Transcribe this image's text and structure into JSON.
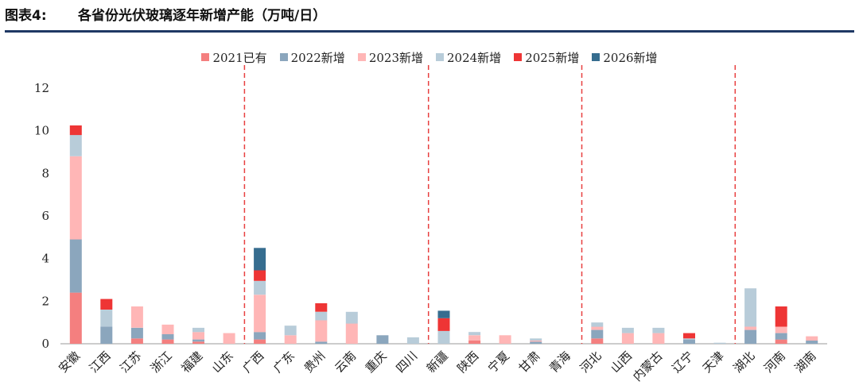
{
  "header": {
    "figure_label": "图表4:",
    "title": "各省份光伏玻璃逐年新增产能（万吨/日）"
  },
  "chart_data": {
    "type": "bar",
    "stacked": true,
    "categories": [
      "安徽",
      "江西",
      "江苏",
      "浙江",
      "福建",
      "山东",
      "广西",
      "广东",
      "贵州",
      "云南",
      "重庆",
      "四川",
      "新疆",
      "陕西",
      "宁夏",
      "甘肃",
      "青海",
      "河北",
      "山西",
      "内蒙古",
      "辽宁",
      "天津",
      "湖北",
      "河南",
      "湖南"
    ],
    "series": [
      {
        "name": "2021已有",
        "color": "#f47f7f",
        "values": [
          2.4,
          0,
          0.25,
          0.2,
          0.1,
          0,
          0.2,
          0,
          0,
          0,
          0,
          0,
          0,
          0.15,
          0,
          0,
          0,
          0.25,
          0,
          0,
          0,
          0,
          0,
          0.2,
          0
        ]
      },
      {
        "name": "2022新增",
        "color": "#8ba6bd",
        "values": [
          2.5,
          0.8,
          0.5,
          0.25,
          0.1,
          0,
          0.35,
          0,
          0.1,
          0,
          0.4,
          0,
          0,
          0,
          0,
          0.1,
          0,
          0.4,
          0,
          0,
          0.2,
          0,
          0.65,
          0.3,
          0.15
        ]
      },
      {
        "name": "2023新增",
        "color": "#ffb6b6",
        "values": [
          3.9,
          0,
          1.0,
          0.45,
          0.35,
          0.5,
          1.75,
          0.4,
          1.0,
          0.95,
          0,
          0,
          0,
          0.25,
          0.4,
          0.05,
          0,
          0.15,
          0.5,
          0.5,
          0,
          0,
          0.15,
          0.3,
          0.2
        ]
      },
      {
        "name": "2024新增",
        "color": "#b8ccd9",
        "values": [
          1.0,
          0.8,
          0,
          0,
          0.2,
          0,
          0.65,
          0.45,
          0.4,
          0.55,
          0,
          0.3,
          0.6,
          0.15,
          0,
          0.1,
          0,
          0.2,
          0.25,
          0.25,
          0.05,
          0.05,
          1.8,
          0,
          0
        ]
      },
      {
        "name": "2025新增",
        "color": "#ee3535",
        "values": [
          0.45,
          0.5,
          0,
          0,
          0,
          0,
          0.5,
          0,
          0.4,
          0,
          0,
          0,
          0.6,
          0,
          0,
          0,
          0,
          0,
          0,
          0,
          0.25,
          0,
          0,
          0.95,
          0
        ]
      },
      {
        "name": "2026新增",
        "color": "#366d8f",
        "values": [
          0,
          0,
          0,
          0,
          0,
          0,
          1.05,
          0,
          0,
          0,
          0,
          0,
          0.35,
          0,
          0,
          0,
          0,
          0,
          0,
          0,
          0,
          0,
          0,
          0,
          0
        ]
      }
    ],
    "ylim": [
      0,
      12
    ],
    "yticks": [
      "0",
      "2",
      "4",
      "6",
      "8",
      "10",
      "12"
    ],
    "ytick_values": [
      0,
      2,
      4,
      6,
      8,
      10,
      12
    ],
    "legend_position": "top-center",
    "grid": false,
    "group_separators_after": [
      "山东",
      "四川",
      "青海",
      "天津"
    ],
    "separator_color": "#e84040"
  }
}
